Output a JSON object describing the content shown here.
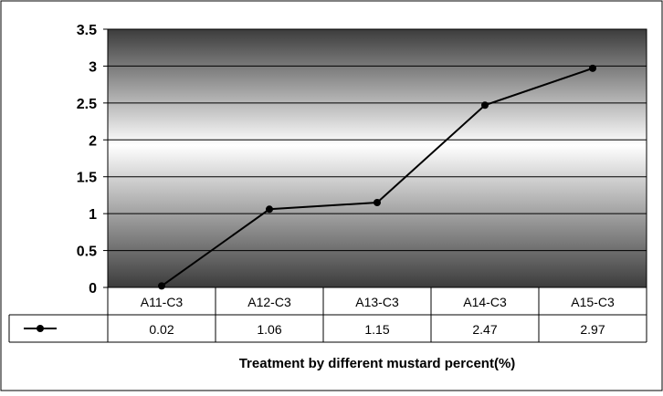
{
  "chart_data": {
    "type": "line",
    "categories": [
      "A11-C3",
      "A12-C3",
      "A13-C3",
      "A14-C3",
      "A15-C3"
    ],
    "series": [
      {
        "values": [
          0.02,
          1.06,
          1.15,
          2.47,
          2.97
        ]
      }
    ],
    "table_values": [
      "0.02",
      "1.06",
      "1.15",
      "2.47",
      "2.97"
    ],
    "ylim": [
      0,
      3.5
    ],
    "yticks": [
      "0",
      "0.5",
      "1",
      "1.5",
      "2",
      "2.5",
      "3",
      "3.5"
    ],
    "grid": true,
    "data_table": true,
    "xlabel": "Treatment by different mustard percent(%)",
    "line_color": "#000000",
    "plot_gradient": [
      "#3c3c3c",
      "#ffffff",
      "#3c3c3c"
    ]
  }
}
